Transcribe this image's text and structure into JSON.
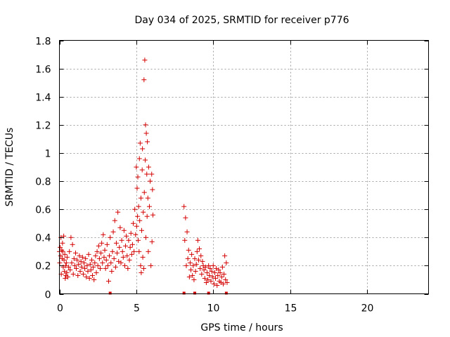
{
  "chart_data": {
    "type": "scatter",
    "title": "Day 034 of 2025, SRMTID for receiver p776",
    "xlabel": "GPS time / hours",
    "ylabel": "SRMTID / TECUs",
    "xlim": [
      0,
      24
    ],
    "ylim": [
      0,
      1.8
    ],
    "xticks": [
      "0",
      "5",
      "10",
      "15",
      "20"
    ],
    "yticks": [
      "0",
      "0.2",
      "0.4",
      "0.6",
      "0.8",
      "1",
      "1.2",
      "1.4",
      "1.6",
      "1.8"
    ],
    "grid": true,
    "color": "#d40000",
    "series": [
      {
        "values": [
          [
            0.0,
            0.3
          ],
          [
            0.02,
            0.22
          ],
          [
            0.05,
            0.33
          ],
          [
            0.08,
            0.27
          ],
          [
            0.1,
            0.4
          ],
          [
            0.12,
            0.14
          ],
          [
            0.15,
            0.31
          ],
          [
            0.18,
            0.25
          ],
          [
            0.2,
            0.36
          ],
          [
            0.22,
            0.3
          ],
          [
            0.25,
            0.19
          ],
          [
            0.28,
            0.41
          ],
          [
            0.3,
            0.24
          ],
          [
            0.33,
            0.16
          ],
          [
            0.35,
            0.28
          ],
          [
            0.38,
            0.11
          ],
          [
            0.4,
            0.2
          ],
          [
            0.42,
            0.13
          ],
          [
            0.45,
            0.22
          ],
          [
            0.48,
            0.15
          ],
          [
            0.5,
            0.26
          ],
          [
            0.55,
            0.12
          ],
          [
            0.6,
            0.19
          ],
          [
            0.65,
            0.3
          ],
          [
            0.7,
            0.17
          ],
          [
            0.75,
            0.4
          ],
          [
            0.8,
            0.22
          ],
          [
            0.85,
            0.35
          ],
          [
            0.9,
            0.14
          ],
          [
            0.95,
            0.25
          ],
          [
            1.0,
            0.2
          ],
          [
            1.05,
            0.29
          ],
          [
            1.1,
            0.18
          ],
          [
            1.15,
            0.24
          ],
          [
            1.2,
            0.13
          ],
          [
            1.25,
            0.21
          ],
          [
            1.3,
            0.27
          ],
          [
            1.35,
            0.16
          ],
          [
            1.4,
            0.23
          ],
          [
            1.45,
            0.19
          ],
          [
            1.5,
            0.26
          ],
          [
            1.55,
            0.14
          ],
          [
            1.6,
            0.22
          ],
          [
            1.65,
            0.18
          ],
          [
            1.7,
            0.25
          ],
          [
            1.75,
            0.12
          ],
          [
            1.8,
            0.2
          ],
          [
            1.85,
            0.16
          ],
          [
            1.9,
            0.28
          ],
          [
            1.95,
            0.11
          ],
          [
            2.0,
            0.21
          ],
          [
            2.05,
            0.17
          ],
          [
            2.1,
            0.24
          ],
          [
            2.15,
            0.13
          ],
          [
            2.2,
            0.19
          ],
          [
            2.25,
            0.1
          ],
          [
            2.3,
            0.22
          ],
          [
            2.35,
            0.27
          ],
          [
            2.4,
            0.15
          ],
          [
            2.45,
            0.3
          ],
          [
            2.5,
            0.2
          ],
          [
            2.55,
            0.34
          ],
          [
            2.6,
            0.25
          ],
          [
            2.65,
            0.18
          ],
          [
            2.7,
            0.29
          ],
          [
            2.75,
            0.36
          ],
          [
            2.8,
            0.22
          ],
          [
            2.85,
            0.42
          ],
          [
            2.9,
            0.26
          ],
          [
            2.95,
            0.31
          ],
          [
            3.0,
            0.18
          ],
          [
            3.05,
            0.24
          ],
          [
            3.1,
            0.35
          ],
          [
            3.15,
            0.2
          ],
          [
            3.2,
            0.09
          ],
          [
            3.25,
            0.27
          ],
          [
            3.3,
            0.4
          ],
          [
            3.35,
            0.22
          ],
          [
            3.4,
            0.16
          ],
          [
            3.45,
            0.3
          ],
          [
            3.5,
            0.44
          ],
          [
            3.55,
            0.25
          ],
          [
            3.6,
            0.52
          ],
          [
            3.65,
            0.19
          ],
          [
            3.7,
            0.36
          ],
          [
            3.75,
            0.29
          ],
          [
            3.8,
            0.58
          ],
          [
            3.85,
            0.23
          ],
          [
            3.9,
            0.33
          ],
          [
            3.95,
            0.47
          ],
          [
            4.0,
            0.22
          ],
          [
            4.05,
            0.38
          ],
          [
            4.1,
            0.3
          ],
          [
            4.15,
            0.26
          ],
          [
            4.2,
            0.45
          ],
          [
            4.25,
            0.2
          ],
          [
            4.3,
            0.34
          ],
          [
            4.35,
            0.41
          ],
          [
            4.4,
            0.27
          ],
          [
            4.45,
            0.18
          ],
          [
            4.5,
            0.38
          ],
          [
            4.55,
            0.24
          ],
          [
            4.6,
            0.33
          ],
          [
            4.65,
            0.43
          ],
          [
            4.7,
            0.28
          ],
          [
            4.75,
            0.35
          ],
          [
            4.8,
            0.5
          ],
          [
            4.85,
            0.3
          ],
          [
            4.9,
            0.6
          ],
          [
            4.95,
            0.42
          ],
          [
            5.0,
            0.9
          ],
          [
            5.02,
            0.48
          ],
          [
            5.05,
            0.75
          ],
          [
            5.08,
            0.55
          ],
          [
            5.1,
            0.83
          ],
          [
            5.12,
            0.38
          ],
          [
            5.15,
            0.62
          ],
          [
            5.18,
            0.3
          ],
          [
            5.2,
            0.96
          ],
          [
            5.22,
            0.52
          ],
          [
            5.25,
            1.07
          ],
          [
            5.28,
            0.2
          ],
          [
            5.3,
            0.68
          ],
          [
            5.32,
            0.15
          ],
          [
            5.35,
            0.45
          ],
          [
            5.38,
            0.88
          ],
          [
            5.4,
            1.03
          ],
          [
            5.42,
            0.26
          ],
          [
            5.45,
            0.58
          ],
          [
            5.48,
            0.18
          ],
          [
            5.5,
            1.52
          ],
          [
            5.52,
            0.72
          ],
          [
            5.55,
            1.66
          ],
          [
            5.58,
            0.95
          ],
          [
            5.6,
            1.2
          ],
          [
            5.62,
            0.4
          ],
          [
            5.65,
            1.14
          ],
          [
            5.68,
            0.85
          ],
          [
            5.7,
            0.55
          ],
          [
            5.72,
            1.08
          ],
          [
            5.75,
            0.68
          ],
          [
            5.78,
            0.3
          ],
          [
            5.8,
            0.9
          ],
          [
            5.85,
            0.62
          ],
          [
            5.9,
            0.8
          ],
          [
            5.95,
            0.2
          ],
          [
            6.0,
            0.85
          ],
          [
            6.02,
            0.37
          ],
          [
            6.05,
            0.74
          ],
          [
            6.08,
            0.56
          ],
          [
            8.1,
            0.62
          ],
          [
            8.15,
            0.38
          ],
          [
            8.2,
            0.54
          ],
          [
            8.25,
            0.2
          ],
          [
            8.3,
            0.44
          ],
          [
            8.35,
            0.25
          ],
          [
            8.4,
            0.31
          ],
          [
            8.45,
            0.12
          ],
          [
            8.5,
            0.22
          ],
          [
            8.55,
            0.17
          ],
          [
            8.6,
            0.28
          ],
          [
            8.65,
            0.13
          ],
          [
            8.7,
            0.2
          ],
          [
            8.75,
            0.1
          ],
          [
            8.8,
            0.25
          ],
          [
            8.85,
            0.16
          ],
          [
            8.9,
            0.21
          ],
          [
            8.95,
            0.3
          ],
          [
            9.0,
            0.38
          ],
          [
            9.05,
            0.24
          ],
          [
            9.1,
            0.32
          ],
          [
            9.15,
            0.18
          ],
          [
            9.2,
            0.27
          ],
          [
            9.25,
            0.14
          ],
          [
            9.3,
            0.23
          ],
          [
            9.35,
            0.2
          ],
          [
            9.4,
            0.17
          ],
          [
            9.45,
            0.11
          ],
          [
            9.5,
            0.19
          ],
          [
            9.55,
            0.08
          ],
          [
            9.6,
            0.15
          ],
          [
            9.65,
            0.1
          ],
          [
            9.7,
            0.2
          ],
          [
            9.75,
            0.13
          ],
          [
            9.8,
            0.18
          ],
          [
            9.85,
            0.09
          ],
          [
            9.9,
            0.16
          ],
          [
            9.95,
            0.12
          ],
          [
            10.0,
            0.2
          ],
          [
            10.05,
            0.07
          ],
          [
            10.1,
            0.15
          ],
          [
            10.15,
            0.11
          ],
          [
            10.2,
            0.18
          ],
          [
            10.25,
            0.06
          ],
          [
            10.3,
            0.13
          ],
          [
            10.35,
            0.17
          ],
          [
            10.4,
            0.09
          ],
          [
            10.45,
            0.15
          ],
          [
            10.5,
            0.08
          ],
          [
            10.55,
            0.12
          ],
          [
            10.6,
            0.19
          ],
          [
            10.65,
            0.07
          ],
          [
            10.7,
            0.14
          ],
          [
            10.75,
            0.27
          ],
          [
            10.8,
            0.1
          ],
          [
            10.85,
            0.22
          ],
          [
            10.9,
            0.08
          ]
        ]
      }
    ],
    "gap_markers_x": [
      3.3,
      8.1,
      8.8,
      9.7,
      10.85
    ]
  }
}
